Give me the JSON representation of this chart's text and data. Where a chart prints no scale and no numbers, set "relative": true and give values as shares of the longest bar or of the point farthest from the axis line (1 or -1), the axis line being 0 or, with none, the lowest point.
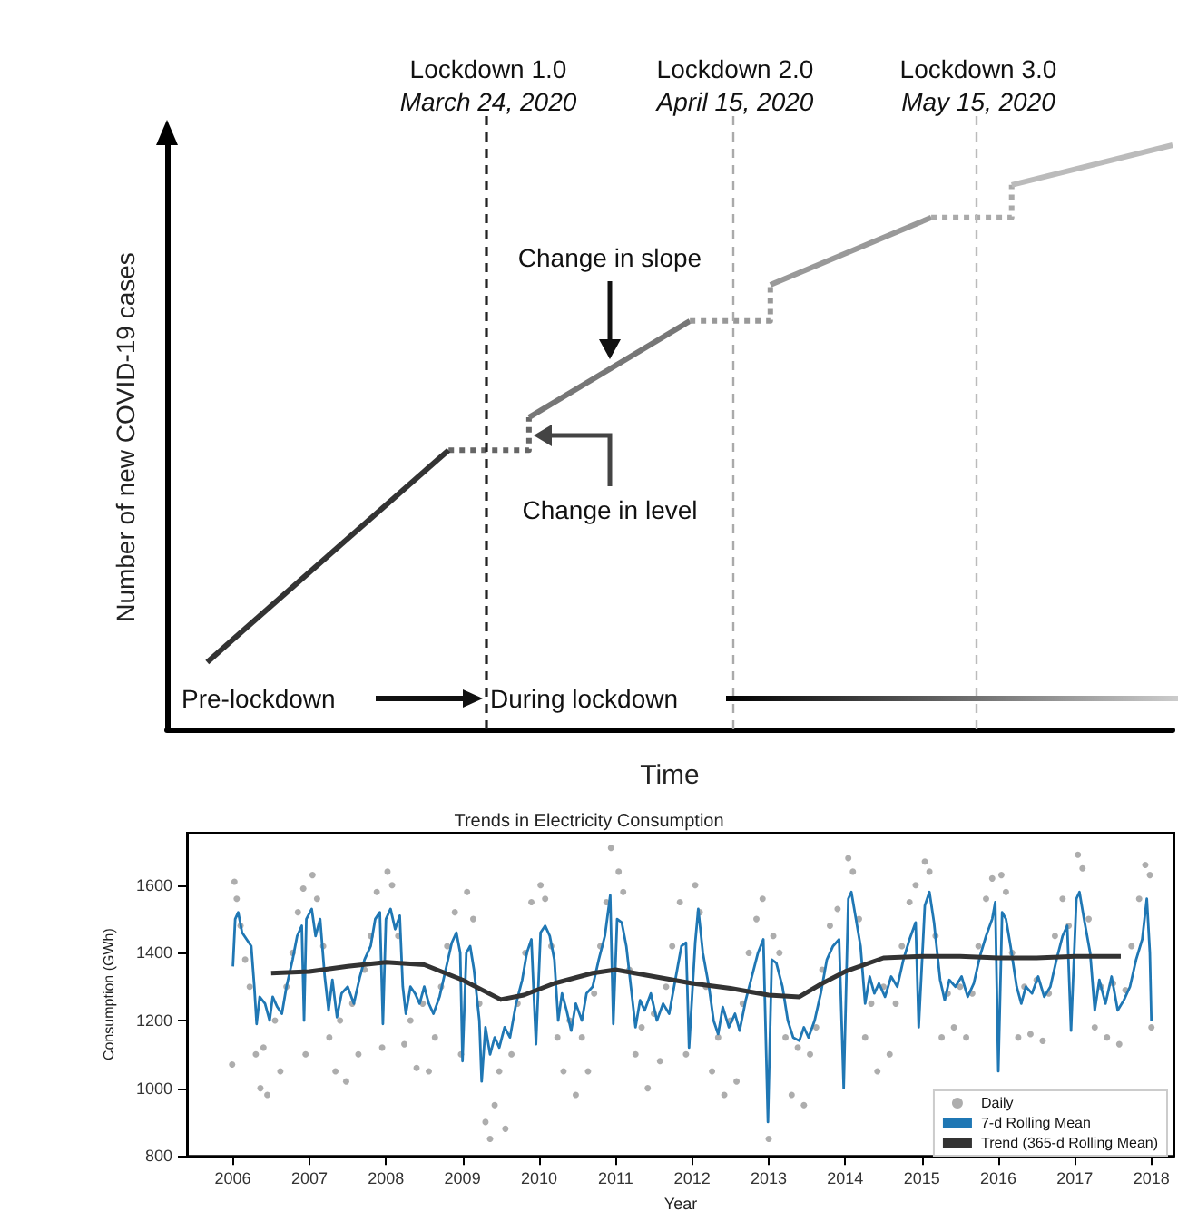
{
  "chart_data": [
    {
      "type": "line",
      "relative": true,
      "xlabel": "Time",
      "ylabel": "Number of new COVID-19 cases",
      "marker": "none",
      "categories": [
        null,
        null,
        null,
        null,
        null,
        null,
        null,
        null,
        null,
        null,
        null,
        null,
        null,
        null,
        null,
        null,
        null,
        null,
        null,
        null,
        null,
        null,
        null,
        null,
        null,
        null,
        null,
        null,
        null,
        null,
        null,
        null,
        null,
        null,
        null,
        null,
        null,
        null,
        null,
        null,
        null,
        null,
        null,
        null,
        null,
        null,
        null,
        null,
        null,
        null,
        null
      ],
      "series": [
        {
          "color": "#333333",
          "line_style": "solid",
          "values": [
            null,
            null,
            0.115,
            null,
            null,
            null,
            null,
            null,
            null,
            null,
            null,
            null,
            null,
            null,
            0.478,
            null,
            null,
            null,
            null,
            null,
            null,
            null,
            null,
            null,
            null,
            null,
            null,
            null,
            null,
            null,
            null,
            null,
            null,
            null,
            null,
            null,
            null,
            null,
            null,
            null,
            null,
            null,
            null,
            null,
            null,
            null,
            null,
            null,
            null,
            null,
            null
          ]
        },
        {
          "type": "step",
          "color": "#666666",
          "line_style": "dotted",
          "values": [
            null,
            null,
            null,
            null,
            null,
            null,
            null,
            null,
            null,
            null,
            null,
            null,
            null,
            null,
            0.478,
            null,
            null,
            null,
            0.534,
            null,
            null,
            null,
            null,
            null,
            null,
            null,
            null,
            null,
            null,
            null,
            null,
            null,
            null,
            null,
            null,
            null,
            null,
            null,
            null,
            null,
            null,
            null,
            null,
            null,
            null,
            null,
            null,
            null,
            null,
            null,
            null
          ]
        },
        {
          "color": "#777777",
          "line_style": "solid",
          "values": [
            null,
            null,
            null,
            null,
            null,
            null,
            null,
            null,
            null,
            null,
            null,
            null,
            null,
            null,
            null,
            null,
            null,
            null,
            0.534,
            null,
            null,
            null,
            null,
            null,
            null,
            null,
            0.699,
            null,
            null,
            null,
            null,
            null,
            null,
            null,
            null,
            null,
            null,
            null,
            null,
            null,
            null,
            null,
            null,
            null,
            null,
            null,
            null,
            null,
            null,
            null,
            null
          ]
        },
        {
          "type": "step",
          "color": "#999999",
          "line_style": "dotted",
          "values": [
            null,
            null,
            null,
            null,
            null,
            null,
            null,
            null,
            null,
            null,
            null,
            null,
            null,
            null,
            null,
            null,
            null,
            null,
            null,
            null,
            null,
            null,
            null,
            null,
            null,
            null,
            0.699,
            null,
            null,
            null,
            0.761,
            null,
            null,
            null,
            null,
            null,
            null,
            null,
            null,
            null,
            null,
            null,
            null,
            null,
            null,
            null,
            null,
            null,
            null,
            null,
            null
          ]
        },
        {
          "color": "#999999",
          "line_style": "solid",
          "values": [
            null,
            null,
            null,
            null,
            null,
            null,
            null,
            null,
            null,
            null,
            null,
            null,
            null,
            null,
            null,
            null,
            null,
            null,
            null,
            null,
            null,
            null,
            null,
            null,
            null,
            null,
            null,
            null,
            null,
            null,
            0.761,
            null,
            null,
            null,
            null,
            null,
            null,
            null,
            0.876,
            null,
            null,
            null,
            null,
            null,
            null,
            null,
            null,
            null,
            null,
            null,
            null
          ]
        },
        {
          "type": "step",
          "color": "#aaaaaa",
          "line_style": "dotted",
          "values": [
            null,
            null,
            null,
            null,
            null,
            null,
            null,
            null,
            null,
            null,
            null,
            null,
            null,
            null,
            null,
            null,
            null,
            null,
            null,
            null,
            null,
            null,
            null,
            null,
            null,
            null,
            null,
            null,
            null,
            null,
            null,
            null,
            null,
            null,
            null,
            null,
            null,
            null,
            0.876,
            null,
            null,
            null,
            0.932,
            null,
            null,
            null,
            null,
            null,
            null,
            null,
            null
          ]
        },
        {
          "color": "#bbbbbb",
          "line_style": "solid",
          "values": [
            null,
            null,
            null,
            null,
            null,
            null,
            null,
            null,
            null,
            null,
            null,
            null,
            null,
            null,
            null,
            null,
            null,
            null,
            null,
            null,
            null,
            null,
            null,
            null,
            null,
            null,
            null,
            null,
            null,
            null,
            null,
            null,
            null,
            null,
            null,
            null,
            null,
            null,
            null,
            null,
            null,
            null,
            0.932,
            null,
            null,
            null,
            null,
            null,
            null,
            null,
            1
          ]
        }
      ],
      "annotations": [
        "Lockdown 1.0\nMarch 24, 2020",
        "Lockdown 2.0\nApril 15, 2020",
        "Lockdown 3.0\nMay 15, 2020",
        "Change in slope",
        "Change in level",
        "Pre-lockdown",
        "During lockdown"
      ]
    },
    {
      "type": "line",
      "title": "Trends in Electricity Consumption",
      "xlabel": "Year",
      "ylabel": "Consumption (GWh)",
      "xlim": [
        2005.4,
        2018.3
      ],
      "xticks": [
        2006,
        2007,
        2008,
        2009,
        2010,
        2011,
        2012,
        2013,
        2014,
        2015,
        2016,
        2017,
        2018
      ],
      "ylim": [
        800,
        1755
      ],
      "yticks": [
        800,
        1000,
        1200,
        1400,
        1600
      ],
      "legend": "bottom right",
      "series": [
        {
          "name": "Daily",
          "type": "scatter",
          "marker": "circle",
          "color": "#999999",
          "x": [
            2005.99,
            2006.02,
            2006.05,
            2006.1,
            2006.16,
            2006.22,
            2006.3,
            2006.36,
            2006.4,
            2006.45,
            2006.55,
            2006.62,
            2006.7,
            2006.78,
            2006.85,
            2006.92,
            2006.95,
            2007.04,
            2007.1,
            2007.18,
            2007.26,
            2007.34,
            2007.4,
            2007.48,
            2007.56,
            2007.64,
            2007.72,
            2007.8,
            2007.88,
            2007.95,
            2008.02,
            2008.08,
            2008.16,
            2008.24,
            2008.32,
            2008.4,
            2008.48,
            2008.56,
            2008.64,
            2008.72,
            2008.8,
            2008.9,
            2008.98,
            2009.06,
            2009.14,
            2009.22,
            2009.3,
            2009.36,
            2009.42,
            2009.48,
            2009.56,
            2009.64,
            2009.72,
            2009.82,
            2009.9,
            2010.02,
            2010.08,
            2010.16,
            2010.24,
            2010.32,
            2010.4,
            2010.48,
            2010.56,
            2010.64,
            2010.72,
            2010.8,
            2010.88,
            2010.94,
            2011.04,
            2011.1,
            2011.18,
            2011.26,
            2011.34,
            2011.42,
            2011.5,
            2011.58,
            2011.66,
            2011.74,
            2011.84,
            2011.92,
            2012.04,
            2012.1,
            2012.18,
            2012.26,
            2012.34,
            2012.42,
            2012.5,
            2012.58,
            2012.66,
            2012.74,
            2012.84,
            2012.92,
            2013.0,
            2013.06,
            2013.14,
            2013.22,
            2013.3,
            2013.38,
            2013.46,
            2013.54,
            2013.62,
            2013.7,
            2013.8,
            2013.9,
            2014.04,
            2014.1,
            2014.18,
            2014.26,
            2014.34,
            2014.42,
            2014.5,
            2014.58,
            2014.66,
            2014.74,
            2014.84,
            2014.92,
            2015.04,
            2015.1,
            2015.18,
            2015.26,
            2015.34,
            2015.42,
            2015.5,
            2015.58,
            2015.66,
            2015.74,
            2015.84,
            2015.92,
            2016.04,
            2016.1,
            2016.18,
            2016.26,
            2016.34,
            2016.42,
            2016.5,
            2016.58,
            2016.66,
            2016.74,
            2016.84,
            2016.92,
            2017.04,
            2017.1,
            2017.18,
            2017.26,
            2017.34,
            2017.42,
            2017.5,
            2017.58,
            2017.66,
            2017.74,
            2017.84,
            2017.92,
            2017.98,
            2018.0
          ],
          "values": [
            1070,
            1610,
            1560,
            1480,
            1380,
            1300,
            1100,
            1000,
            1120,
            980,
            1200,
            1050,
            1300,
            1400,
            1520,
            1590,
            1100,
            1630,
            1560,
            1420,
            1150,
            1050,
            1200,
            1020,
            1250,
            1100,
            1350,
            1450,
            1580,
            1120,
            1640,
            1600,
            1450,
            1130,
            1200,
            1060,
            1250,
            1050,
            1150,
            1300,
            1420,
            1520,
            1100,
            1580,
            1500,
            1250,
            900,
            850,
            950,
            1050,
            880,
            1100,
            1250,
            1400,
            1550,
            1600,
            1560,
            1420,
            1150,
            1050,
            1200,
            980,
            1150,
            1050,
            1280,
            1420,
            1550,
            1710,
            1640,
            1580,
            1350,
            1100,
            1180,
            1000,
            1220,
            1080,
            1300,
            1420,
            1550,
            1100,
            1600,
            1520,
            1300,
            1050,
            1150,
            980,
            1200,
            1020,
            1250,
            1400,
            1500,
            1560,
            850,
            1450,
            1400,
            1150,
            980,
            1120,
            950,
            1100,
            1180,
            1350,
            1480,
            1530,
            1680,
            1640,
            1500,
            1150,
            1250,
            1050,
            1300,
            1100,
            1250,
            1420,
            1550,
            1600,
            1670,
            1640,
            1450,
            1150,
            1280,
            1180,
            1300,
            1150,
            1280,
            1420,
            1560,
            1620,
            1630,
            1580,
            1400,
            1150,
            1300,
            1160,
            1320,
            1140,
            1280,
            1450,
            1560,
            1480,
            1690,
            1650,
            1500,
            1180,
            1300,
            1150,
            1310,
            1130,
            1290,
            1420,
            1560,
            1660,
            1630,
            1180
          ]
        },
        {
          "name": "7-d Rolling Mean",
          "marker": "none",
          "color": "#1f77b4",
          "x": [
            2006.0,
            2006.03,
            2006.07,
            2006.12,
            2006.18,
            2006.24,
            2006.28,
            2006.31,
            2006.35,
            2006.42,
            2006.48,
            2006.52,
            2006.58,
            2006.64,
            2006.7,
            2006.78,
            2006.84,
            2006.9,
            2006.93,
            2006.96,
            2007.03,
            2007.08,
            2007.14,
            2007.2,
            2007.25,
            2007.3,
            2007.36,
            2007.42,
            2007.5,
            2007.58,
            2007.66,
            2007.72,
            2007.8,
            2007.86,
            2007.92,
            2007.96,
            2008.0,
            2008.06,
            2008.12,
            2008.18,
            2008.22,
            2008.26,
            2008.32,
            2008.38,
            2008.44,
            2008.5,
            2008.56,
            2008.62,
            2008.7,
            2008.78,
            2008.86,
            2008.92,
            2008.97,
            2009.0,
            2009.05,
            2009.1,
            2009.15,
            2009.22,
            2009.25,
            2009.3,
            2009.36,
            2009.42,
            2009.48,
            2009.55,
            2009.62,
            2009.7,
            2009.78,
            2009.84,
            2009.9,
            2009.96,
            2010.02,
            2010.08,
            2010.14,
            2010.2,
            2010.25,
            2010.3,
            2010.36,
            2010.42,
            2010.48,
            2010.56,
            2010.62,
            2010.7,
            2010.78,
            2010.86,
            2010.93,
            2010.97,
            2011.02,
            2011.08,
            2011.14,
            2011.2,
            2011.26,
            2011.32,
            2011.38,
            2011.46,
            2011.54,
            2011.62,
            2011.7,
            2011.78,
            2011.86,
            2011.92,
            2011.96,
            2012.04,
            2012.08,
            2012.14,
            2012.22,
            2012.28,
            2012.34,
            2012.4,
            2012.48,
            2012.56,
            2012.62,
            2012.7,
            2012.78,
            2012.86,
            2012.93,
            2012.99,
            2013.04,
            2013.1,
            2013.18,
            2013.25,
            2013.32,
            2013.4,
            2013.46,
            2013.52,
            2013.6,
            2013.68,
            2013.76,
            2013.84,
            2013.92,
            2013.98,
            2014.04,
            2014.08,
            2014.14,
            2014.2,
            2014.26,
            2014.32,
            2014.38,
            2014.44,
            2014.52,
            2014.6,
            2014.68,
            2014.76,
            2014.84,
            2014.92,
            2014.96,
            2015.04,
            2015.1,
            2015.16,
            2015.24,
            2015.3,
            2015.36,
            2015.44,
            2015.52,
            2015.6,
            2015.68,
            2015.76,
            2015.84,
            2015.92,
            2015.96,
            2016.0,
            2016.05,
            2016.1,
            2016.16,
            2016.24,
            2016.3,
            2016.36,
            2016.44,
            2016.52,
            2016.6,
            2016.68,
            2016.76,
            2016.84,
            2016.9,
            2016.95,
            2017.02,
            2017.06,
            2017.12,
            2017.2,
            2017.26,
            2017.32,
            2017.4,
            2017.48,
            2017.56,
            2017.64,
            2017.72,
            2017.8,
            2017.88,
            2017.94,
            2017.98,
            2018.0
          ],
          "values": [
            1360,
            1500,
            1520,
            1460,
            1440,
            1420,
            1300,
            1190,
            1270,
            1250,
            1200,
            1270,
            1240,
            1220,
            1300,
            1380,
            1450,
            1480,
            1200,
            1500,
            1530,
            1450,
            1500,
            1330,
            1230,
            1320,
            1210,
            1280,
            1300,
            1250,
            1330,
            1380,
            1420,
            1500,
            1520,
            1190,
            1500,
            1530,
            1470,
            1510,
            1300,
            1220,
            1300,
            1280,
            1250,
            1300,
            1250,
            1220,
            1270,
            1350,
            1430,
            1460,
            1400,
            1080,
            1400,
            1420,
            1350,
            1200,
            1020,
            1180,
            1100,
            1150,
            1120,
            1180,
            1150,
            1250,
            1320,
            1400,
            1440,
            1130,
            1460,
            1480,
            1450,
            1380,
            1200,
            1280,
            1230,
            1170,
            1250,
            1200,
            1280,
            1300,
            1380,
            1450,
            1570,
            1190,
            1500,
            1490,
            1420,
            1300,
            1180,
            1260,
            1230,
            1280,
            1200,
            1250,
            1220,
            1320,
            1420,
            1430,
            1120,
            1430,
            1530,
            1400,
            1300,
            1200,
            1160,
            1240,
            1180,
            1220,
            1170,
            1260,
            1330,
            1400,
            1440,
            900,
            1380,
            1370,
            1300,
            1200,
            1150,
            1140,
            1180,
            1150,
            1200,
            1280,
            1380,
            1420,
            1440,
            1000,
            1560,
            1580,
            1500,
            1420,
            1250,
            1330,
            1280,
            1310,
            1270,
            1330,
            1300,
            1380,
            1440,
            1490,
            1180,
            1540,
            1580,
            1490,
            1320,
            1260,
            1320,
            1300,
            1330,
            1270,
            1310,
            1390,
            1450,
            1500,
            1550,
            1050,
            1520,
            1500,
            1420,
            1300,
            1250,
            1300,
            1280,
            1330,
            1270,
            1300,
            1380,
            1450,
            1480,
            1170,
            1560,
            1580,
            1500,
            1400,
            1230,
            1320,
            1250,
            1330,
            1230,
            1260,
            1300,
            1380,
            1440,
            1560,
            1400,
            1200
          ]
        },
        {
          "name": "Trend (365-d Rolling Mean)",
          "marker": "none",
          "color": "#333333",
          "x": [
            2006.5,
            2007.0,
            2007.5,
            2008.0,
            2008.5,
            2009.0,
            2009.5,
            2009.8,
            2010.2,
            2010.7,
            2011.0,
            2011.5,
            2012.0,
            2012.5,
            2013.0,
            2013.4,
            2013.7,
            2014.0,
            2014.5,
            2015.0,
            2015.5,
            2016.0,
            2016.5,
            2017.0,
            2017.6
          ],
          "values": [
            1340,
            1345,
            1360,
            1372,
            1365,
            1320,
            1262,
            1275,
            1310,
            1340,
            1350,
            1330,
            1310,
            1295,
            1275,
            1270,
            1310,
            1345,
            1385,
            1390,
            1390,
            1385,
            1385,
            1390,
            1390
          ]
        }
      ]
    }
  ]
}
